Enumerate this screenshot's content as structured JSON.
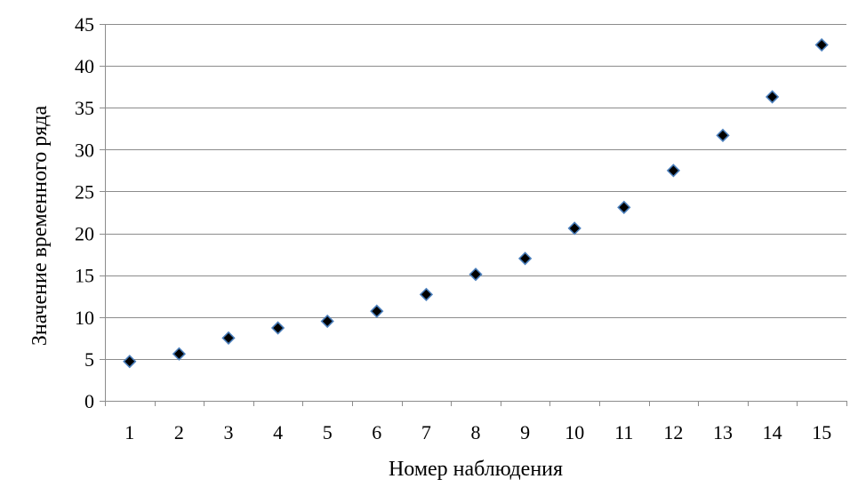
{
  "chart_data": {
    "type": "scatter",
    "title": "",
    "xlabel": "Номер наблюдения",
    "ylabel": "Значение временного ряда",
    "xlim": [
      0.5,
      15.5
    ],
    "ylim": [
      0,
      45
    ],
    "y_ticks": [
      0,
      5,
      10,
      15,
      20,
      25,
      30,
      35,
      40,
      45
    ],
    "x_ticks": [
      1,
      2,
      3,
      4,
      5,
      6,
      7,
      8,
      9,
      10,
      11,
      12,
      13,
      14,
      15
    ],
    "grid": {
      "horizontal": true,
      "vertical": false
    },
    "legend": "none",
    "marker": "diamond",
    "marker_fill": "#000000",
    "marker_edge": "#4a7ebb",
    "series": [
      {
        "x": [
          1,
          2,
          3,
          4,
          5,
          6,
          7,
          8,
          9,
          10,
          11,
          12,
          13,
          14,
          15
        ],
        "y": [
          4.7,
          5.6,
          7.5,
          8.7,
          9.5,
          10.7,
          12.7,
          15.1,
          17.0,
          20.6,
          23.1,
          27.5,
          31.7,
          36.3,
          42.5
        ]
      }
    ]
  }
}
